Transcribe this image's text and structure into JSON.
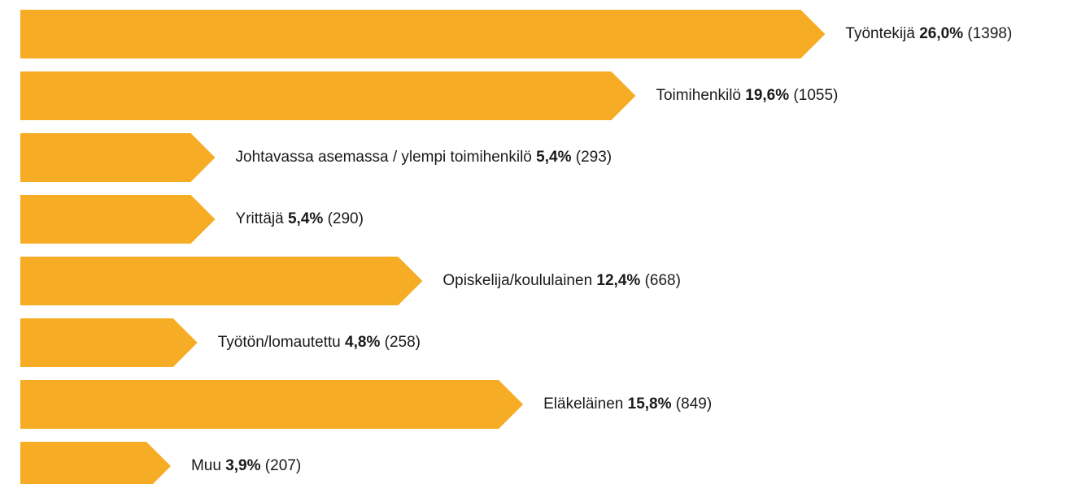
{
  "chart_data": {
    "type": "bar",
    "orientation": "horizontal",
    "color": "#f7ac25",
    "categories": [
      "Työntekijä",
      "Toimihenkilö",
      "Johtavassa asemassa / ylempi toimihenkilö",
      "Yrittäjä",
      "Opiskelija/koululainen",
      "Työtön/lomautettu",
      "Eläkeläinen",
      "Muu"
    ],
    "values": [
      26.0,
      19.6,
      5.4,
      5.4,
      12.4,
      4.8,
      15.8,
      3.9
    ],
    "value_labels": [
      "26,0%",
      "19,6%",
      "5,4%",
      "5,4%",
      "12,4%",
      "4,8%",
      "15,8%",
      "3,9%"
    ],
    "counts": [
      1398,
      1055,
      293,
      290,
      668,
      258,
      849,
      207
    ],
    "count_labels": [
      "(1398)",
      "(1055)",
      "(293)",
      "(290)",
      "(668)",
      "(258)",
      "(849)",
      "(207)"
    ]
  }
}
